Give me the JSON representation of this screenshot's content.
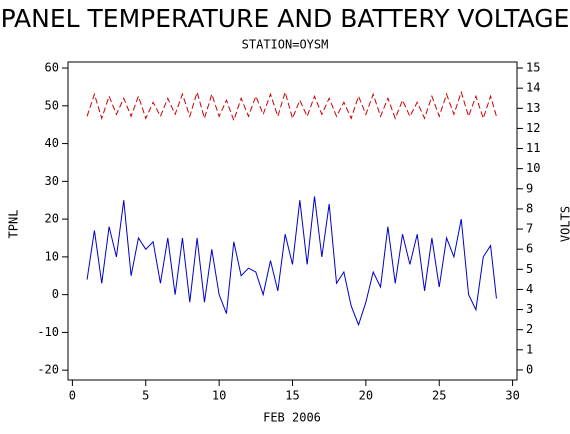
{
  "chart_data": {
    "type": "line",
    "title": "PANEL TEMPERATURE AND BATTERY VOLTAGE",
    "subtitle": "STATION=OYSM",
    "y_label": "TPNL",
    "y2_label": "VOLTS",
    "x_label": "FEB 2006",
    "x": [
      1,
      1.5,
      2,
      2.5,
      3,
      3.5,
      4,
      4.5,
      5,
      5.5,
      6,
      6.5,
      7,
      7.5,
      8,
      8.5,
      9,
      9.5,
      10,
      10.5,
      11,
      11.5,
      12,
      12.5,
      13,
      13.5,
      14,
      14.5,
      15,
      15.5,
      16,
      16.5,
      17,
      17.5,
      18,
      18.5,
      19,
      19.5,
      20,
      20.5,
      21,
      21.5,
      22,
      22.5,
      23,
      23.5,
      24,
      24.5,
      25,
      25.5,
      26,
      26.5,
      27,
      27.5,
      28,
      28.5,
      28.9
    ],
    "series": [
      {
        "name": "TPNL",
        "color": "#0000cc",
        "axis": "y",
        "dashed": false,
        "values": [
          4,
          17,
          3,
          18,
          10,
          25,
          5,
          15,
          12,
          14,
          3,
          15,
          0,
          15,
          -2,
          15,
          -2,
          12,
          0,
          -5,
          14,
          5,
          7,
          6,
          0,
          9,
          1,
          16,
          8,
          25,
          8,
          26,
          10,
          24,
          3,
          6,
          -3,
          -8,
          -2,
          6,
          2,
          18,
          3,
          16,
          8,
          16,
          1,
          15,
          2,
          15,
          10,
          20,
          0,
          -4,
          10,
          13,
          -1
        ]
      },
      {
        "name": "VOLTS",
        "color": "#cc0000",
        "axis": "y2",
        "dashed": true,
        "values": [
          12.6,
          13.7,
          12.5,
          13.6,
          12.7,
          13.5,
          12.6,
          13.6,
          12.5,
          13.3,
          12.6,
          13.5,
          12.7,
          13.7,
          12.6,
          13.8,
          12.5,
          13.7,
          12.6,
          13.4,
          12.4,
          13.5,
          12.6,
          13.6,
          12.7,
          13.7,
          12.6,
          13.8,
          12.5,
          13.4,
          12.6,
          13.6,
          12.7,
          13.5,
          12.6,
          13.3,
          12.5,
          13.6,
          12.7,
          13.7,
          12.6,
          13.5,
          12.5,
          13.4,
          12.6,
          13.3,
          12.5,
          13.6,
          12.6,
          13.7,
          12.7,
          13.8,
          12.6,
          13.6,
          12.5,
          13.6,
          12.6
        ]
      }
    ],
    "xlim": [
      -0.3,
      30.3
    ],
    "xticks": [
      0,
      5,
      10,
      15,
      20,
      25,
      30
    ],
    "ylim": [
      -22.6,
      61.6
    ],
    "yticks": [
      -20,
      -10,
      0,
      10,
      20,
      30,
      40,
      50,
      60
    ],
    "y2lim": [
      -0.5,
      15.3
    ],
    "y2ticks": [
      0,
      1,
      2,
      3,
      4,
      5,
      6,
      7,
      8,
      9,
      10,
      11,
      12,
      13,
      14,
      15
    ]
  }
}
